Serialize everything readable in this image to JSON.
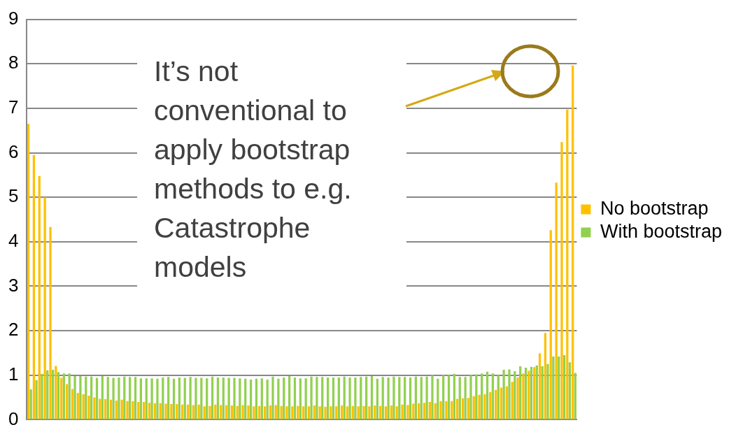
{
  "chart_data": {
    "type": "bar",
    "categories": [
      null,
      null,
      null,
      null,
      null,
      null,
      null,
      null,
      null,
      null,
      null,
      null,
      null,
      null,
      null,
      null,
      null,
      null,
      null,
      null,
      null,
      null,
      null,
      null,
      null,
      null,
      null,
      null,
      null,
      null,
      null,
      null,
      null,
      null,
      null,
      null,
      null,
      null,
      null,
      null,
      null,
      null,
      null,
      null,
      null,
      null,
      null,
      null,
      null,
      null,
      null,
      null,
      null,
      null,
      null,
      null,
      null,
      null,
      null,
      null,
      null,
      null,
      null,
      null,
      null,
      null,
      null,
      null,
      null,
      null,
      null,
      null,
      null,
      null,
      null,
      null,
      null,
      null,
      null,
      null,
      null,
      null,
      null,
      null,
      null,
      null,
      null,
      null,
      null,
      null,
      null,
      null,
      null,
      null,
      null,
      null,
      null,
      null,
      null,
      null
    ],
    "series": [
      {
        "name": "No bootstrap",
        "color": "#ffc000",
        "values": [
          6.65,
          5.95,
          5.48,
          5.0,
          4.33,
          1.21,
          0.94,
          0.8,
          0.69,
          0.6,
          0.57,
          0.54,
          0.5,
          0.47,
          0.46,
          0.45,
          0.43,
          0.45,
          0.42,
          0.42,
          0.4,
          0.4,
          0.38,
          0.37,
          0.37,
          0.36,
          0.35,
          0.35,
          0.34,
          0.34,
          0.33,
          0.34,
          0.3,
          0.31,
          0.34,
          0.33,
          0.33,
          0.32,
          0.31,
          0.33,
          0.32,
          0.3,
          0.31,
          0.3,
          0.32,
          0.33,
          0.31,
          0.3,
          0.3,
          0.31,
          0.3,
          0.3,
          0.32,
          0.3,
          0.29,
          0.3,
          0.3,
          0.32,
          0.3,
          0.31,
          0.3,
          0.31,
          0.3,
          0.32,
          0.31,
          0.3,
          0.32,
          0.3,
          0.34,
          0.33,
          0.36,
          0.37,
          0.38,
          0.4,
          0.37,
          0.42,
          0.42,
          0.42,
          0.47,
          0.48,
          0.49,
          0.53,
          0.56,
          0.57,
          0.62,
          0.67,
          0.72,
          0.75,
          0.85,
          0.95,
          1.04,
          1.1,
          1.18,
          1.49,
          1.95,
          4.26,
          5.33,
          6.24,
          6.97,
          7.96
        ]
      },
      {
        "name": "With bootstrap",
        "color": "#92d050",
        "values": [
          0.68,
          0.89,
          1.03,
          1.11,
          1.12,
          1.07,
          1.04,
          1.04,
          0.98,
          0.98,
          0.97,
          0.97,
          0.94,
          0.98,
          0.96,
          0.94,
          0.95,
          0.97,
          0.96,
          0.96,
          0.93,
          0.93,
          0.93,
          0.92,
          0.95,
          0.96,
          0.92,
          0.95,
          0.94,
          0.96,
          0.94,
          0.94,
          0.93,
          0.97,
          0.95,
          0.95,
          0.94,
          0.94,
          0.93,
          0.92,
          0.9,
          0.92,
          0.93,
          0.9,
          0.97,
          0.92,
          0.95,
          0.98,
          0.95,
          0.93,
          0.93,
          0.97,
          0.96,
          0.96,
          0.95,
          0.95,
          0.95,
          0.97,
          0.95,
          0.95,
          0.96,
          0.97,
          0.98,
          0.92,
          0.96,
          0.95,
          0.97,
          0.96,
          0.96,
          0.95,
          0.97,
          0.96,
          0.97,
          1.0,
          0.92,
          1.0,
          1.0,
          1.03,
          0.96,
          0.96,
          1.0,
          1.02,
          1.04,
          1.08,
          1.04,
          1.0,
          1.12,
          1.13,
          1.09,
          1.2,
          1.17,
          1.19,
          1.22,
          1.2,
          1.25,
          1.42,
          1.42,
          1.45,
          1.29,
          1.05
        ]
      }
    ],
    "ylim": [
      0,
      9
    ],
    "yticks": [
      0,
      1,
      2,
      3,
      4,
      5,
      6,
      7,
      8,
      9
    ],
    "grid": "y",
    "legend": "right",
    "annotations": [
      "It’s not conventional to apply bootstrap methods to e.g. Catastrophe models"
    ]
  }
}
